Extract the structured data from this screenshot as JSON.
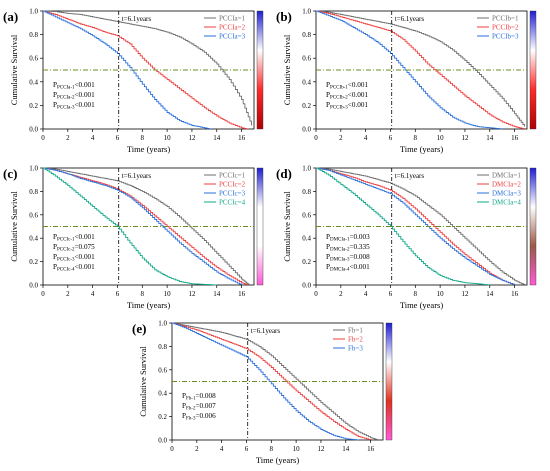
{
  "colors": {
    "grey": "#6e6e6e",
    "red": "#ee3f3f",
    "blue": "#2a6fdc",
    "teal": "#10a889",
    "olive": "#6b8e23",
    "black": "#000000"
  },
  "chart_data": [
    {
      "type": "line",
      "panel_label": "(a)",
      "xlabel": "Time (years)",
      "ylabel": "Cumulative Survival",
      "xlim": [
        0,
        17
      ],
      "ylim": [
        0,
        1.0
      ],
      "xticks": [
        "0",
        "2",
        "4",
        "6",
        "8",
        "10",
        "12",
        "14",
        "16"
      ],
      "yticks": [
        "0.0",
        "0.2",
        "0.4",
        "0.6",
        "0.8",
        "1.0"
      ],
      "reference_lines": {
        "vertical_x": 6.1,
        "vertical_label": "t=6.1years",
        "horizontal_y": 0.5
      },
      "legend_position": "top-right",
      "colorbar": "blue-white-red gradient, right side",
      "pvalues": [
        "P_PCCIa-1<0.001",
        "P_PCCIa-2<0.001",
        "P_PCCIa-3<0.001"
      ],
      "series": [
        {
          "name": "PCCIa=1",
          "color": "grey",
          "x": [
            0,
            1,
            2,
            3,
            4,
            5,
            6,
            7,
            8,
            9,
            10,
            11,
            12,
            13,
            14,
            15,
            16,
            16.8
          ],
          "y": [
            1.0,
            0.995,
            0.98,
            0.97,
            0.95,
            0.93,
            0.91,
            0.89,
            0.87,
            0.85,
            0.82,
            0.78,
            0.72,
            0.65,
            0.55,
            0.42,
            0.25,
            0.03
          ]
        },
        {
          "name": "PCCIa=2",
          "color": "red",
          "x": [
            0,
            1,
            2,
            3,
            4,
            5,
            6,
            7,
            8,
            9,
            10,
            11,
            12,
            13,
            14,
            15,
            16,
            16.5
          ],
          "y": [
            1.0,
            0.97,
            0.93,
            0.89,
            0.86,
            0.82,
            0.79,
            0.72,
            0.6,
            0.5,
            0.42,
            0.34,
            0.26,
            0.18,
            0.11,
            0.05,
            0.01,
            0.0
          ]
        },
        {
          "name": "PCCIa=3",
          "color": "blue",
          "x": [
            0,
            1,
            2,
            3,
            4,
            5,
            6,
            7,
            8,
            9,
            10,
            11,
            12,
            13,
            13.5
          ],
          "y": [
            1.0,
            0.95,
            0.9,
            0.85,
            0.79,
            0.72,
            0.64,
            0.52,
            0.38,
            0.25,
            0.14,
            0.07,
            0.03,
            0.01,
            0.0
          ]
        }
      ]
    },
    {
      "type": "line",
      "panel_label": "(b)",
      "xlabel": "Time (years)",
      "ylabel": "Cumulative Survival",
      "xlim": [
        0,
        17
      ],
      "ylim": [
        0,
        1.0
      ],
      "xticks": [
        "0",
        "2",
        "4",
        "6",
        "8",
        "10",
        "12",
        "14",
        "16"
      ],
      "yticks": [
        "0.0",
        "0.2",
        "0.4",
        "0.6",
        "0.8",
        "1.0"
      ],
      "reference_lines": {
        "vertical_x": 6.1,
        "vertical_label": "t=6.1years",
        "horizontal_y": 0.5
      },
      "legend_position": "top-right",
      "colorbar": "blue-white-red gradient, right side",
      "pvalues": [
        "P_PCCIb-1<0.001",
        "P_PCCIb-2<0.001",
        "P_PCCIb-3<0.001"
      ],
      "series": [
        {
          "name": "PCCIb=1",
          "color": "grey",
          "x": [
            0,
            1,
            2,
            3,
            4,
            5,
            6,
            7,
            8,
            9,
            10,
            11,
            12,
            13,
            14,
            15,
            16,
            16.8
          ],
          "y": [
            1.0,
            0.99,
            0.97,
            0.95,
            0.93,
            0.91,
            0.89,
            0.86,
            0.83,
            0.79,
            0.74,
            0.67,
            0.58,
            0.48,
            0.37,
            0.26,
            0.13,
            0.02
          ]
        },
        {
          "name": "PCCIb=2",
          "color": "red",
          "x": [
            0,
            1,
            2,
            3,
            4,
            5,
            6,
            7,
            8,
            9,
            10,
            11,
            12,
            13,
            14,
            15,
            16,
            16.8
          ],
          "y": [
            1.0,
            0.98,
            0.95,
            0.92,
            0.89,
            0.86,
            0.83,
            0.76,
            0.66,
            0.55,
            0.46,
            0.37,
            0.28,
            0.2,
            0.12,
            0.06,
            0.02,
            0.0
          ]
        },
        {
          "name": "PCCIb=3",
          "color": "blue",
          "x": [
            0,
            1,
            2,
            3,
            4,
            5,
            6,
            7,
            8,
            9,
            10,
            11,
            12,
            13,
            14,
            15
          ],
          "y": [
            1.0,
            0.96,
            0.92,
            0.86,
            0.8,
            0.73,
            0.64,
            0.52,
            0.4,
            0.28,
            0.18,
            0.1,
            0.05,
            0.02,
            0.01,
            0.0
          ]
        }
      ]
    },
    {
      "type": "line",
      "panel_label": "(c)",
      "xlabel": "Time (years)",
      "ylabel": "Cumulative Survival",
      "xlim": [
        0,
        17
      ],
      "ylim": [
        0,
        1.0
      ],
      "xticks": [
        "0",
        "2",
        "4",
        "6",
        "8",
        "10",
        "12",
        "14",
        "16"
      ],
      "yticks": [
        "0.0",
        "0.2",
        "0.4",
        "0.6",
        "0.8",
        "1.0"
      ],
      "reference_lines": {
        "vertical_x": 6.1,
        "vertical_label": "t=6.1years",
        "horizontal_y": 0.5
      },
      "legend_position": "top-right",
      "colorbar": "blue-white-magenta gradient, right side",
      "pvalues": [
        "P_PCCIc-1<0.001",
        "P_PCCIc-2=0.075",
        "P_PCCIc-3<0.001",
        "P_PCCIc-4<0.001"
      ],
      "series": [
        {
          "name": "PCCIc=1",
          "color": "grey",
          "x": [
            0,
            1,
            2,
            3,
            4,
            5,
            6,
            7,
            8,
            9,
            10,
            11,
            12,
            13,
            14,
            15,
            16,
            16.6
          ],
          "y": [
            1.0,
            0.99,
            0.97,
            0.95,
            0.93,
            0.91,
            0.89,
            0.85,
            0.8,
            0.74,
            0.67,
            0.58,
            0.48,
            0.38,
            0.27,
            0.16,
            0.05,
            0.0
          ]
        },
        {
          "name": "PCCIc=2",
          "color": "red",
          "x": [
            0,
            1,
            2,
            3,
            4,
            5,
            6,
            7,
            8,
            9,
            10,
            11,
            12,
            13,
            14,
            15,
            16,
            16.5
          ],
          "y": [
            1.0,
            0.98,
            0.95,
            0.92,
            0.89,
            0.86,
            0.82,
            0.76,
            0.68,
            0.59,
            0.5,
            0.41,
            0.32,
            0.23,
            0.15,
            0.08,
            0.02,
            0.0
          ]
        },
        {
          "name": "PCCIc=3",
          "color": "blue",
          "x": [
            0,
            1,
            2,
            3,
            4,
            5,
            6,
            7,
            8,
            9,
            10,
            11,
            12,
            13,
            14,
            15,
            16
          ],
          "y": [
            1.0,
            0.98,
            0.95,
            0.91,
            0.88,
            0.85,
            0.81,
            0.75,
            0.66,
            0.56,
            0.46,
            0.36,
            0.27,
            0.19,
            0.11,
            0.05,
            0.0
          ]
        },
        {
          "name": "PCCIc=4",
          "color": "teal",
          "x": [
            0,
            1,
            2,
            3,
            4,
            5,
            6,
            7,
            8,
            9,
            10,
            11,
            12,
            13,
            14
          ],
          "y": [
            1.0,
            0.93,
            0.85,
            0.76,
            0.67,
            0.58,
            0.5,
            0.36,
            0.23,
            0.13,
            0.07,
            0.03,
            0.01,
            0.005,
            0.0
          ]
        }
      ]
    },
    {
      "type": "line",
      "panel_label": "(d)",
      "xlabel": "Time (years)",
      "ylabel": "Cumulative Survival",
      "xlim": [
        0,
        17
      ],
      "ylim": [
        0,
        1.0
      ],
      "xticks": [
        "0",
        "2",
        "4",
        "6",
        "8",
        "10",
        "12",
        "14",
        "16"
      ],
      "yticks": [
        "0.0",
        "0.2",
        "0.4",
        "0.6",
        "0.8",
        "1.0"
      ],
      "reference_lines": {
        "vertical_x": 6.1,
        "vertical_label": "t=6.1years",
        "horizontal_y": 0.5
      },
      "legend_position": "top-right",
      "colorbar": "blue-white-brown-magenta gradient, right side",
      "pvalues": [
        "P_DMCIa-1=0.003",
        "P_DMCIa-2=0.335",
        "P_DMCIa-3=0.008",
        "P_DMCIa-4<0.001"
      ],
      "series": [
        {
          "name": "DMCIa=1",
          "color": "grey",
          "x": [
            0,
            1,
            2,
            3,
            4,
            5,
            6,
            7,
            8,
            9,
            10,
            11,
            12,
            13,
            14,
            15,
            16,
            16.8
          ],
          "y": [
            1.0,
            0.99,
            0.97,
            0.95,
            0.93,
            0.9,
            0.87,
            0.82,
            0.76,
            0.68,
            0.6,
            0.5,
            0.4,
            0.3,
            0.2,
            0.11,
            0.04,
            0.0
          ]
        },
        {
          "name": "DMCIa=2",
          "color": "red",
          "x": [
            0,
            1,
            2,
            3,
            4,
            5,
            6,
            7,
            8,
            9,
            10,
            11,
            12,
            13,
            14,
            15,
            16
          ],
          "y": [
            1.0,
            0.98,
            0.95,
            0.92,
            0.88,
            0.85,
            0.81,
            0.74,
            0.65,
            0.55,
            0.45,
            0.35,
            0.26,
            0.18,
            0.1,
            0.04,
            0.0
          ]
        },
        {
          "name": "DMCIa=3",
          "color": "blue",
          "x": [
            0,
            1,
            2,
            3,
            4,
            5,
            6,
            7,
            8,
            9,
            10,
            11,
            12,
            13,
            14,
            15,
            16
          ],
          "y": [
            1.0,
            0.98,
            0.94,
            0.9,
            0.86,
            0.82,
            0.78,
            0.7,
            0.6,
            0.5,
            0.4,
            0.31,
            0.23,
            0.16,
            0.09,
            0.04,
            0.0
          ]
        },
        {
          "name": "DMCIa=4",
          "color": "teal",
          "x": [
            0,
            1,
            2,
            3,
            4,
            5,
            6,
            7,
            8,
            9,
            10,
            11,
            12,
            13,
            14
          ],
          "y": [
            1.0,
            0.94,
            0.86,
            0.78,
            0.69,
            0.6,
            0.5,
            0.37,
            0.25,
            0.15,
            0.08,
            0.04,
            0.02,
            0.01,
            0.0
          ]
        }
      ]
    },
    {
      "type": "line",
      "panel_label": "(e)",
      "xlabel": "Time (years)",
      "ylabel": "Cumulative Survival",
      "xlim": [
        0,
        17
      ],
      "ylim": [
        0,
        1.0
      ],
      "xticks": [
        "0",
        "2",
        "4",
        "6",
        "8",
        "10",
        "12",
        "14",
        "16"
      ],
      "yticks": [
        "0.0",
        "0.2",
        "0.4",
        "0.6",
        "0.8",
        "1.0"
      ],
      "reference_lines": {
        "vertical_x": 6.1,
        "vertical_label": "t=6.1years",
        "horizontal_y": 0.5
      },
      "legend_position": "top-right",
      "colorbar": "blue-white-red-magenta gradient, right side",
      "pvalues": [
        "P_Fb-1=0.008",
        "P_Fb-2=0.007",
        "P_Fb-3=0.006"
      ],
      "series": [
        {
          "name": "Fb=1",
          "color": "grey",
          "x": [
            0,
            1,
            2,
            3,
            4,
            5,
            6,
            7,
            8,
            9,
            10,
            11,
            12,
            13,
            14,
            15,
            16,
            16.6
          ],
          "y": [
            1.0,
            0.98,
            0.96,
            0.94,
            0.92,
            0.89,
            0.86,
            0.8,
            0.72,
            0.62,
            0.52,
            0.42,
            0.32,
            0.23,
            0.14,
            0.07,
            0.02,
            0.0
          ]
        },
        {
          "name": "Fb=2",
          "color": "red",
          "x": [
            0,
            1,
            2,
            3,
            4,
            5,
            6,
            7,
            8,
            9,
            10,
            11,
            12,
            13,
            14,
            15,
            16
          ],
          "y": [
            1.0,
            0.97,
            0.94,
            0.9,
            0.86,
            0.82,
            0.78,
            0.71,
            0.62,
            0.52,
            0.42,
            0.33,
            0.24,
            0.16,
            0.09,
            0.03,
            0.0
          ]
        },
        {
          "name": "Fb=3",
          "color": "blue",
          "x": [
            0,
            1,
            2,
            3,
            4,
            5,
            6,
            7,
            8,
            9,
            10,
            11,
            12,
            13,
            14,
            15
          ],
          "y": [
            1.0,
            0.96,
            0.91,
            0.86,
            0.81,
            0.76,
            0.71,
            0.6,
            0.48,
            0.36,
            0.25,
            0.16,
            0.09,
            0.04,
            0.01,
            0.0
          ]
        }
      ]
    }
  ]
}
